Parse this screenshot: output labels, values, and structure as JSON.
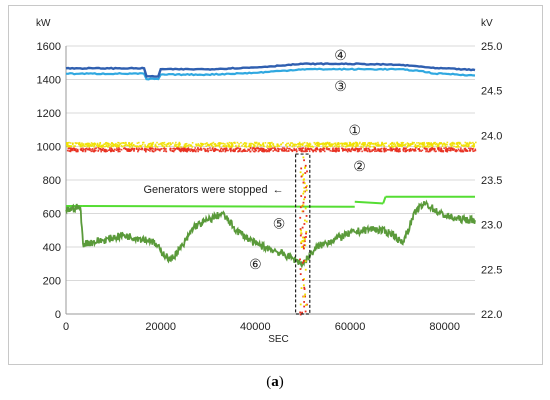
{
  "chart_data": {
    "type": "line",
    "caption_open": "(",
    "caption_letter": "a",
    "caption_close": ")",
    "xlabel": "SEC",
    "y_left_unit": "kW",
    "y_right_unit": "kV",
    "xlim": [
      0,
      86400
    ],
    "ylim_left": [
      0,
      1600
    ],
    "ylim_right": [
      22.0,
      25.0
    ],
    "x_ticks": [
      0,
      20000,
      40000,
      60000,
      80000
    ],
    "y_left_ticks": [
      0,
      200,
      400,
      600,
      800,
      1000,
      1200,
      1400,
      1600
    ],
    "y_right_ticks": [
      "22.0",
      "22.5",
      "23.0",
      "23.5",
      "24.0",
      "24.5",
      "25.0"
    ],
    "grid": true,
    "colors": {
      "s1": "#f0e000",
      "s2": "#e83020",
      "s3": "#30a8e0",
      "s4": "#2f5fb0",
      "s5": "#55dd33",
      "s6": "#5a9a3a",
      "stop_box": "#222222"
    },
    "series": [
      {
        "marker": "①",
        "axis": "left",
        "style": "scatter-band",
        "x": [
          0,
          10000,
          20000,
          30000,
          40000,
          50000,
          60000,
          70000,
          80000,
          86400
        ],
        "values": [
          1015,
          1015,
          1015,
          1015,
          1015,
          1015,
          1015,
          1015,
          1015,
          1015
        ]
      },
      {
        "marker": "②",
        "axis": "left",
        "style": "scatter-band",
        "x": [
          0,
          10000,
          20000,
          30000,
          40000,
          50000,
          60000,
          70000,
          80000,
          86400
        ],
        "values": [
          985,
          985,
          985,
          985,
          985,
          985,
          985,
          985,
          985,
          985
        ]
      },
      {
        "marker": "③",
        "axis": "right",
        "x": [
          0,
          16500,
          17000,
          19500,
          20000,
          30000,
          40000,
          45000,
          50000,
          60000,
          70000,
          75000,
          78000,
          80000,
          86400
        ],
        "values": [
          24.69,
          24.69,
          24.63,
          24.63,
          24.68,
          24.68,
          24.7,
          24.72,
          24.74,
          24.74,
          24.74,
          24.72,
          24.69,
          24.69,
          24.67
        ]
      },
      {
        "marker": "④",
        "axis": "right",
        "x": [
          0,
          16500,
          17000,
          19500,
          20000,
          30000,
          40000,
          45000,
          50000,
          60000,
          70000,
          75000,
          78000,
          80000,
          86400
        ],
        "values": [
          24.75,
          24.75,
          24.66,
          24.66,
          24.74,
          24.74,
          24.76,
          24.78,
          24.8,
          24.8,
          24.79,
          24.77,
          24.75,
          24.75,
          24.73
        ]
      },
      {
        "marker": "⑤",
        "axis": "left",
        "x": [
          0,
          3500,
          61000,
          61000,
          67000,
          67500,
          86400
        ],
        "values": [
          645,
          645,
          640,
          670,
          660,
          700,
          700
        ]
      },
      {
        "marker": "⑥",
        "axis": "left",
        "x": [
          0,
          3000,
          3600,
          8000,
          12000,
          18000,
          22000,
          25000,
          27000,
          30000,
          33000,
          36000,
          40000,
          44000,
          48000,
          50000,
          53000,
          57000,
          61000,
          65000,
          69000,
          71000,
          74000,
          76000,
          79000,
          82000,
          86400
        ],
        "values": [
          620,
          640,
          420,
          440,
          470,
          440,
          320,
          420,
          520,
          560,
          600,
          500,
          420,
          380,
          330,
          300,
          400,
          450,
          490,
          510,
          480,
          420,
          620,
          660,
          600,
          570,
          560
        ]
      }
    ],
    "annotation": {
      "text": "Generators were stopped",
      "arrow": "←",
      "x_range": [
        48500,
        51500
      ]
    }
  }
}
